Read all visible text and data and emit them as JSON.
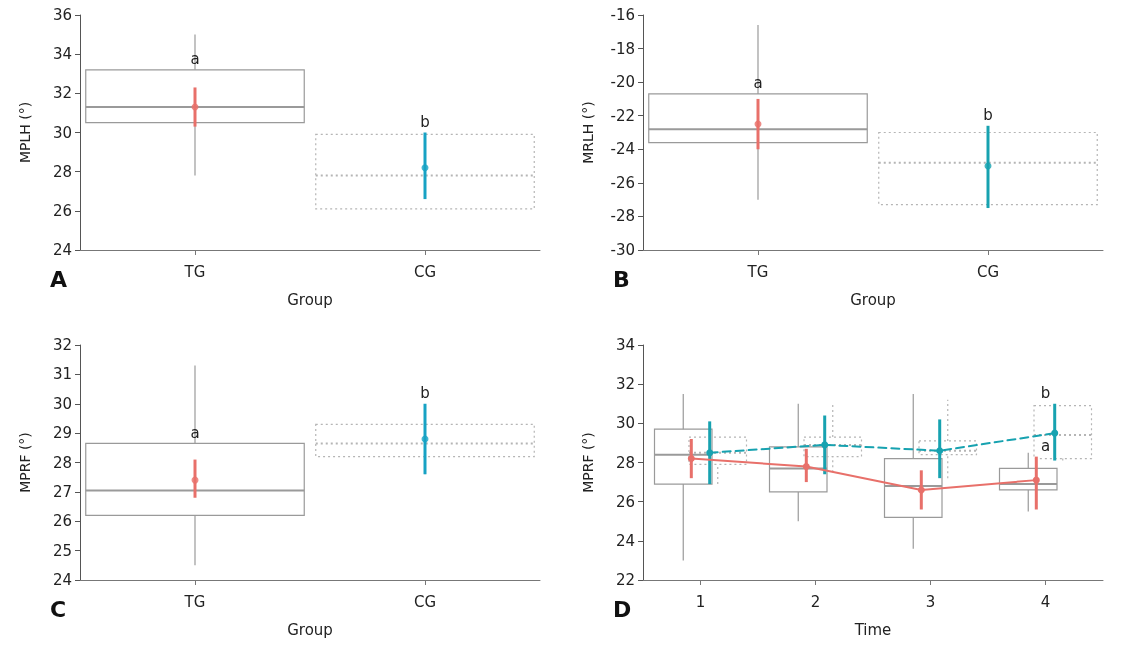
{
  "chart_data": [
    {
      "type": "box",
      "title": "A",
      "xlabel": "Group",
      "ylabel": "MPLH (°)",
      "categories": [
        "TG",
        "CG"
      ],
      "ylim": [
        24,
        36
      ],
      "yticks": [
        24,
        26,
        28,
        30,
        32,
        34,
        36
      ],
      "marker": "circle",
      "series": [
        {
          "color": "#9a9a9a",
          "line_style": "solid",
          "boxes": [
            {
              "low": 27.8,
              "q1": 30.5,
              "median": 31.3,
              "q3": 33.2,
              "high": 35.0
            },
            null
          ]
        },
        {
          "color": "#b5b5b5",
          "line_style": "dotted",
          "boxes": [
            null,
            {
              "low": 26.1,
              "q1": 26.1,
              "median": 27.8,
              "q3": 29.9,
              "high": 29.9
            }
          ]
        },
        {
          "type": "scatter",
          "colors": [
            "#e8706a",
            "#17a2c4"
          ],
          "values": [
            31.3,
            28.2
          ],
          "errors": [
            [
              30.3,
              32.3
            ],
            [
              26.6,
              30.0
            ]
          ]
        }
      ],
      "annotations": [
        {
          "text": "a",
          "x": "TG",
          "y": 33.2
        },
        {
          "text": "b",
          "x": "CG",
          "y": 30.0
        }
      ]
    },
    {
      "type": "box",
      "title": "B",
      "xlabel": "Group",
      "ylabel": "MRLH (°)",
      "categories": [
        "TG",
        "CG"
      ],
      "ylim": [
        -30,
        -16
      ],
      "yticks": [
        -30,
        -28,
        -26,
        -24,
        -22,
        -20,
        -18,
        -16
      ],
      "marker": "circle",
      "series": [
        {
          "color": "#9a9a9a",
          "line_style": "solid",
          "boxes": [
            {
              "low": -27.0,
              "q1": -23.6,
              "median": -22.8,
              "q3": -20.7,
              "high": -16.6
            },
            null
          ]
        },
        {
          "color": "#b5b5b5",
          "line_style": "dotted",
          "boxes": [
            null,
            {
              "low": -27.5,
              "q1": -27.3,
              "median": -24.8,
              "q3": -23.0,
              "high": -23.0
            }
          ]
        },
        {
          "type": "scatter",
          "colors": [
            "#e8706a",
            "#17a2b0"
          ],
          "values": [
            -22.5,
            -25.0
          ],
          "errors": [
            [
              -24.0,
              -21.0
            ],
            [
              -27.5,
              -22.6
            ]
          ]
        }
      ],
      "annotations": [
        {
          "text": "a",
          "x": "TG",
          "y": -20.7
        },
        {
          "text": "b",
          "x": "CG",
          "y": -22.6
        }
      ]
    },
    {
      "type": "box",
      "title": "C",
      "xlabel": "Group",
      "ylabel": "MPRF (°)",
      "categories": [
        "TG",
        "CG"
      ],
      "ylim": [
        24,
        32
      ],
      "yticks": [
        24,
        25,
        26,
        27,
        28,
        29,
        30,
        31,
        32
      ],
      "marker": "circle",
      "series": [
        {
          "color": "#9a9a9a",
          "line_style": "solid",
          "boxes": [
            {
              "low": 24.5,
              "q1": 26.2,
              "median": 27.05,
              "q3": 28.65,
              "high": 31.3
            },
            null
          ]
        },
        {
          "color": "#b5b5b5",
          "line_style": "dotted",
          "boxes": [
            null,
            {
              "low": 27.6,
              "q1": 28.2,
              "median": 28.65,
              "q3": 29.3,
              "high": 29.3
            }
          ]
        },
        {
          "type": "scatter",
          "colors": [
            "#e8706a",
            "#17a2c4"
          ],
          "values": [
            27.4,
            28.8
          ],
          "errors": [
            [
              26.8,
              28.1
            ],
            [
              27.6,
              30.0
            ]
          ]
        }
      ],
      "annotations": [
        {
          "text": "a",
          "x": "TG",
          "y": 28.65
        },
        {
          "text": "b",
          "x": "CG",
          "y": 30.0
        }
      ]
    },
    {
      "type": "line",
      "title": "D",
      "xlabel": "Time",
      "ylabel": "MPRF (°)",
      "categories": [
        "1",
        "2",
        "3",
        "4"
      ],
      "ylim": [
        22,
        34
      ],
      "yticks": [
        22,
        24,
        26,
        28,
        30,
        32,
        34
      ],
      "marker": "circle",
      "series": [
        {
          "type": "box",
          "color": "#9a9a9a",
          "line_style": "solid",
          "boxes": [
            {
              "low": 23.0,
              "q1": 26.9,
              "median": 28.4,
              "q3": 29.7,
              "high": 31.5
            },
            {
              "low": 25.0,
              "q1": 26.5,
              "median": 27.7,
              "q3": 28.8,
              "high": 31.0
            },
            {
              "low": 23.6,
              "q1": 25.2,
              "median": 26.8,
              "q3": 28.2,
              "high": 31.5
            },
            {
              "low": 25.5,
              "q1": 26.6,
              "median": 26.9,
              "q3": 27.7,
              "high": 28.5
            }
          ]
        },
        {
          "type": "box",
          "color": "#b5b5b5",
          "line_style": "dotted",
          "boxes": [
            {
              "low": 26.9,
              "q1": 27.9,
              "median": 28.5,
              "q3": 29.3,
              "high": 29.3
            },
            {
              "low": 27.5,
              "q1": 28.3,
              "median": 28.9,
              "q3": 29.3,
              "high": 31.0
            },
            {
              "low": 27.2,
              "q1": 28.4,
              "median": 28.6,
              "q3": 29.1,
              "high": 31.2
            },
            {
              "low": 28.1,
              "q1": 28.2,
              "median": 29.4,
              "q3": 30.9,
              "high": 30.9
            }
          ]
        },
        {
          "color": "#e8706a",
          "line_style": "solid",
          "values": [
            28.2,
            27.8,
            26.6,
            27.1
          ],
          "errors": [
            [
              27.2,
              29.2
            ],
            [
              27.0,
              28.7
            ],
            [
              25.6,
              27.6
            ],
            [
              25.6,
              28.3
            ]
          ]
        },
        {
          "color": "#17a2b0",
          "line_style": "dashed",
          "values": [
            28.5,
            28.9,
            28.6,
            29.5
          ],
          "errors": [
            [
              26.9,
              30.1
            ],
            [
              27.4,
              30.4
            ],
            [
              27.2,
              30.2
            ],
            [
              28.1,
              31.0
            ]
          ]
        }
      ],
      "annotations": [
        {
          "text": "a",
          "x": "4",
          "y": 28.3
        },
        {
          "text": "b",
          "x": "4",
          "y": 31.0
        }
      ]
    }
  ]
}
